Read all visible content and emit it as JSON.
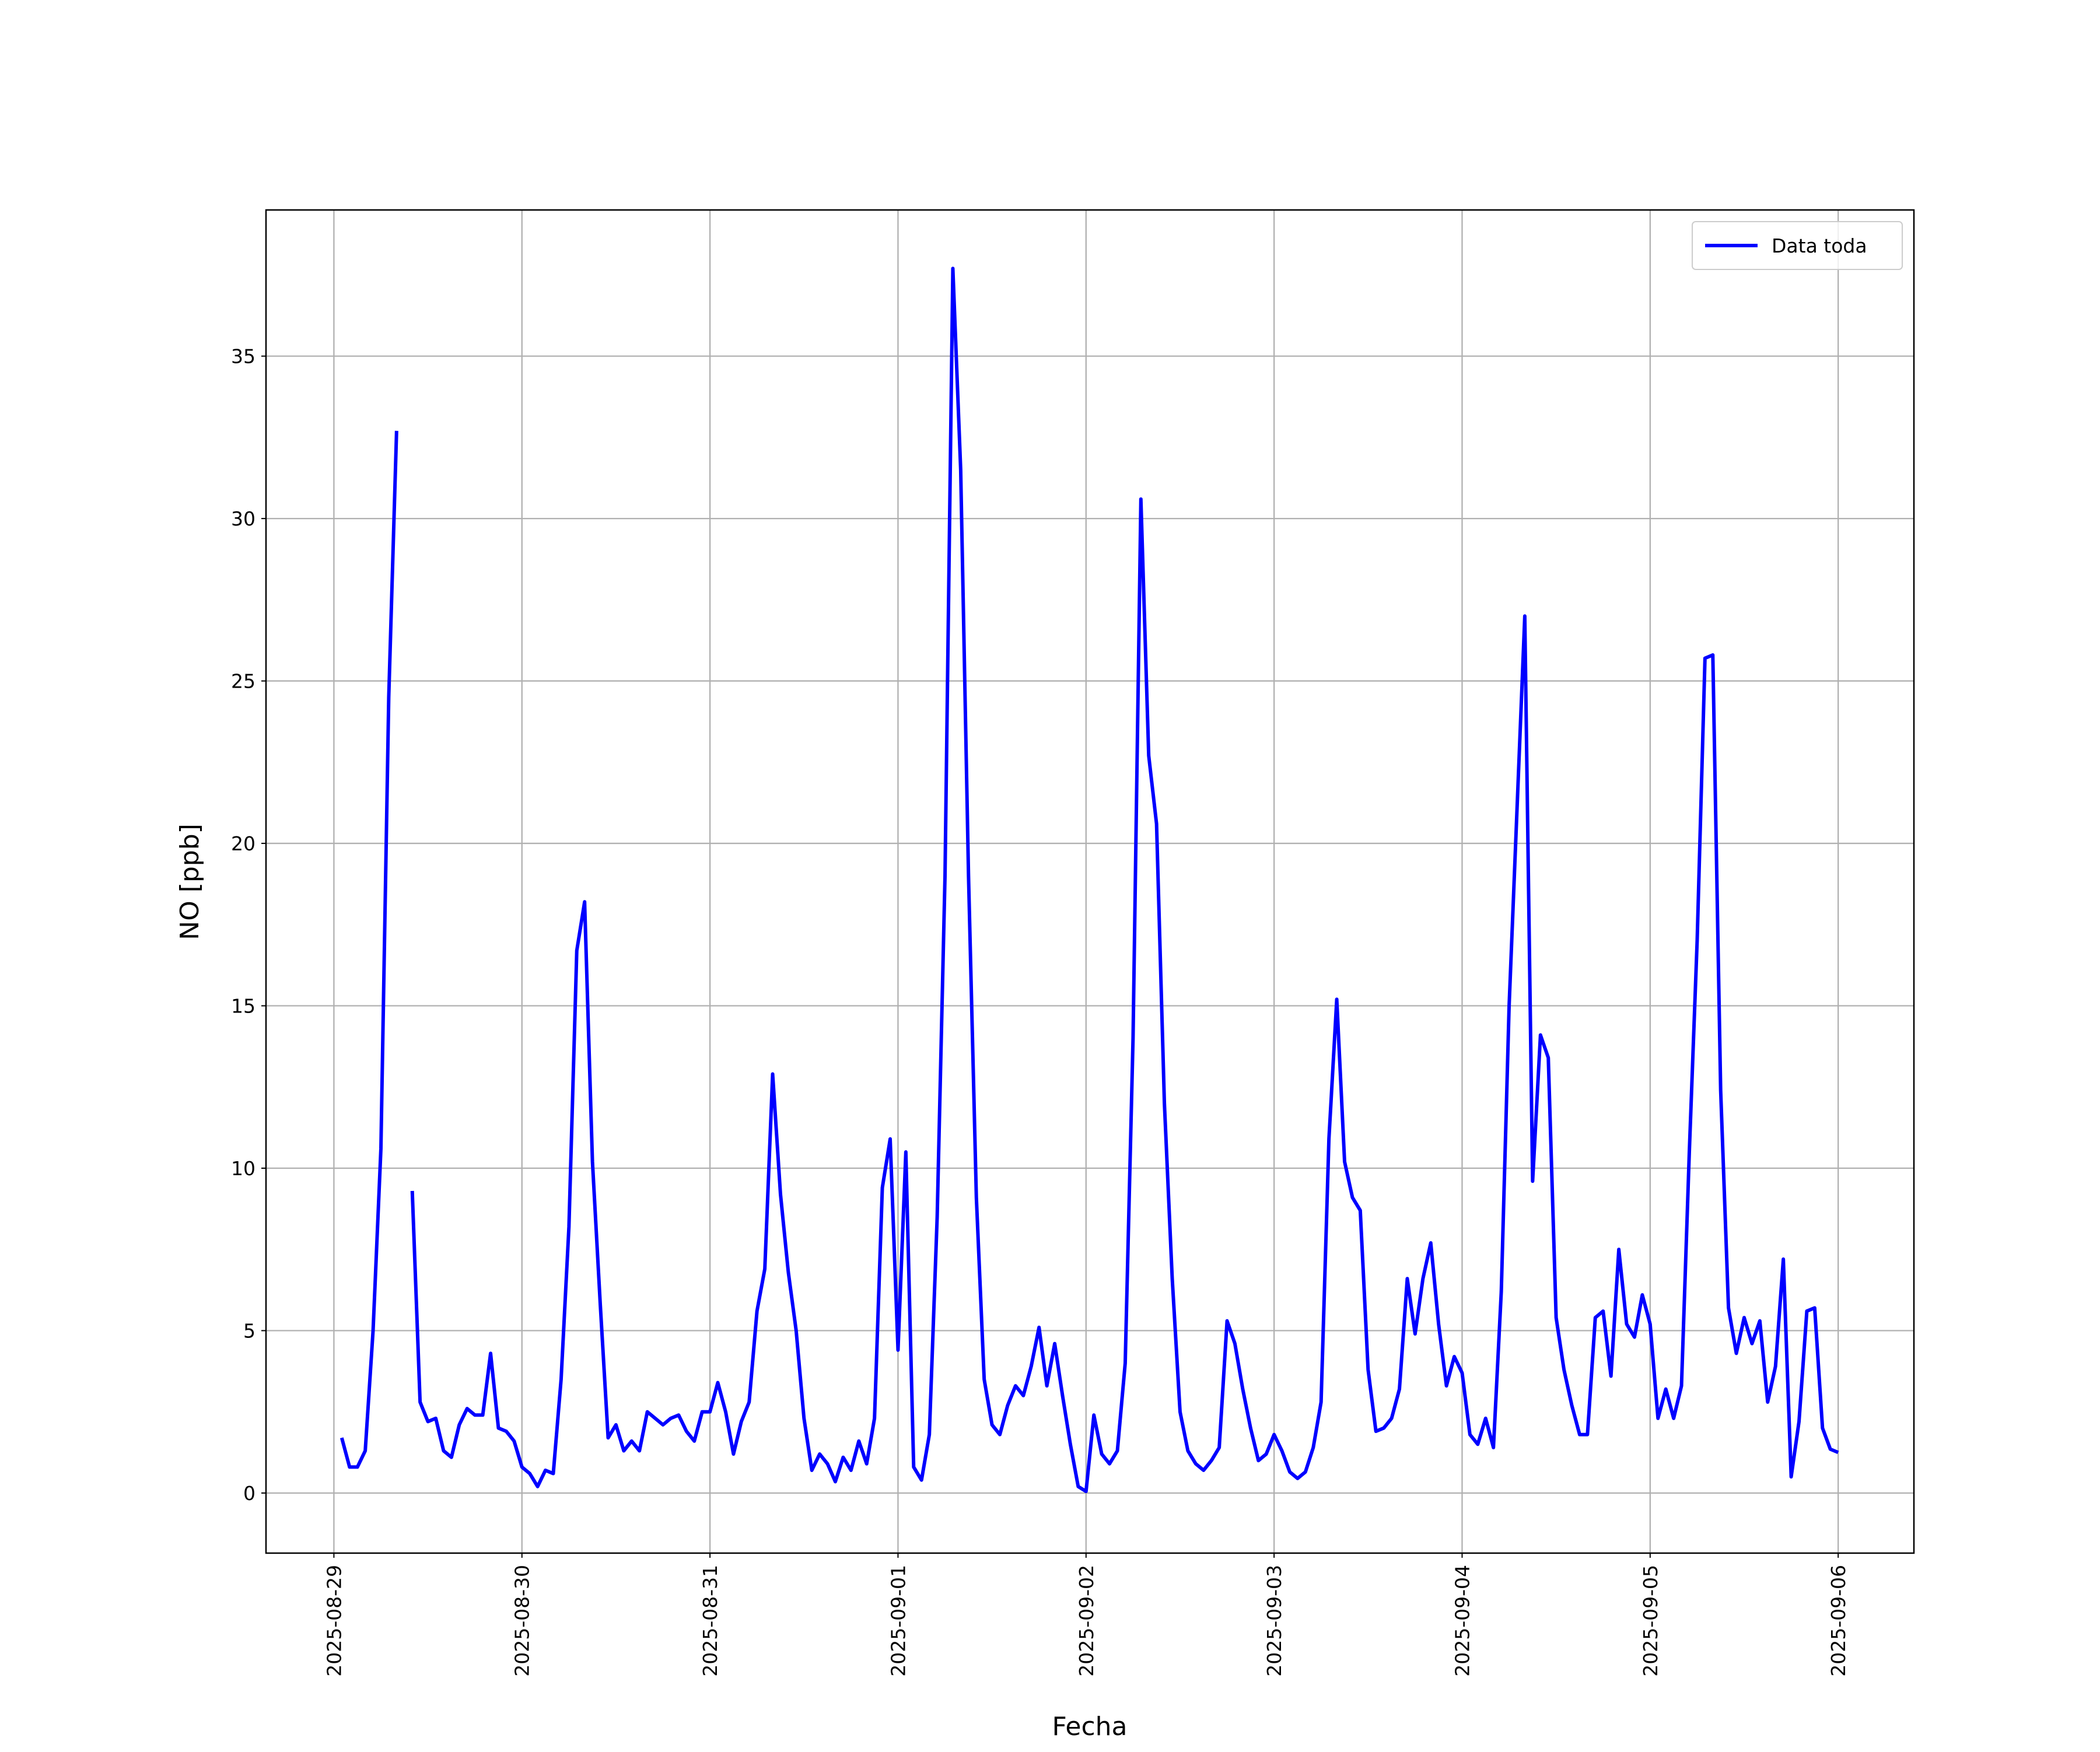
{
  "chart_data": {
    "type": "line",
    "x_label": "Fecha",
    "y_label": "NO [ppb]",
    "x": [
      "2025-08-29 01:00",
      "2025-08-29 02:00",
      "2025-08-29 03:00",
      "2025-08-29 04:00",
      "2025-08-29 05:00",
      "2025-08-29 06:00",
      "2025-08-29 07:00",
      "2025-08-29 08:00",
      "2025-08-29 09:00",
      "2025-08-29 10:00",
      "2025-08-29 11:00",
      "2025-08-29 12:00",
      "2025-08-29 13:00",
      "2025-08-29 14:00",
      "2025-08-29 15:00",
      "2025-08-29 16:00",
      "2025-08-29 17:00",
      "2025-08-29 18:00",
      "2025-08-29 19:00",
      "2025-08-29 20:00",
      "2025-08-29 21:00",
      "2025-08-29 22:00",
      "2025-08-29 23:00",
      "2025-08-30 00:00",
      "2025-08-30 01:00",
      "2025-08-30 02:00",
      "2025-08-30 03:00",
      "2025-08-30 04:00",
      "2025-08-30 05:00",
      "2025-08-30 06:00",
      "2025-08-30 07:00",
      "2025-08-30 08:00",
      "2025-08-30 09:00",
      "2025-08-30 10:00",
      "2025-08-30 11:00",
      "2025-08-30 12:00",
      "2025-08-30 13:00",
      "2025-08-30 14:00",
      "2025-08-30 15:00",
      "2025-08-30 16:00",
      "2025-08-30 17:00",
      "2025-08-30 18:00",
      "2025-08-30 19:00",
      "2025-08-30 20:00",
      "2025-08-30 21:00",
      "2025-08-30 22:00",
      "2025-08-30 23:00",
      "2025-08-31 00:00",
      "2025-08-31 01:00",
      "2025-08-31 02:00",
      "2025-08-31 03:00",
      "2025-08-31 04:00",
      "2025-08-31 05:00",
      "2025-08-31 06:00",
      "2025-08-31 07:00",
      "2025-08-31 08:00",
      "2025-08-31 09:00",
      "2025-08-31 10:00",
      "2025-08-31 11:00",
      "2025-08-31 12:00",
      "2025-08-31 13:00",
      "2025-08-31 14:00",
      "2025-08-31 15:00",
      "2025-08-31 16:00",
      "2025-08-31 17:00",
      "2025-08-31 18:00",
      "2025-08-31 19:00",
      "2025-08-31 20:00",
      "2025-08-31 21:00",
      "2025-08-31 22:00",
      "2025-08-31 23:00",
      "2025-09-01 00:00",
      "2025-09-01 01:00",
      "2025-09-01 02:00",
      "2025-09-01 03:00",
      "2025-09-01 04:00",
      "2025-09-01 05:00",
      "2025-09-01 06:00",
      "2025-09-01 07:00",
      "2025-09-01 08:00",
      "2025-09-01 09:00",
      "2025-09-01 10:00",
      "2025-09-01 11:00",
      "2025-09-01 12:00",
      "2025-09-01 13:00",
      "2025-09-01 14:00",
      "2025-09-01 15:00",
      "2025-09-01 16:00",
      "2025-09-01 17:00",
      "2025-09-01 18:00",
      "2025-09-01 19:00",
      "2025-09-01 20:00",
      "2025-09-01 21:00",
      "2025-09-01 22:00",
      "2025-09-01 23:00",
      "2025-09-02 00:00",
      "2025-09-02 01:00",
      "2025-09-02 02:00",
      "2025-09-02 03:00",
      "2025-09-02 04:00",
      "2025-09-02 05:00",
      "2025-09-02 06:00",
      "2025-09-02 07:00",
      "2025-09-02 08:00",
      "2025-09-02 09:00",
      "2025-09-02 10:00",
      "2025-09-02 11:00",
      "2025-09-02 12:00",
      "2025-09-02 13:00",
      "2025-09-02 14:00",
      "2025-09-02 15:00",
      "2025-09-02 16:00",
      "2025-09-02 17:00",
      "2025-09-02 18:00",
      "2025-09-02 19:00",
      "2025-09-02 20:00",
      "2025-09-02 21:00",
      "2025-09-02 22:00",
      "2025-09-02 23:00",
      "2025-09-03 00:00",
      "2025-09-03 01:00",
      "2025-09-03 02:00",
      "2025-09-03 03:00",
      "2025-09-03 04:00",
      "2025-09-03 05:00",
      "2025-09-03 06:00",
      "2025-09-03 07:00",
      "2025-09-03 08:00",
      "2025-09-03 09:00",
      "2025-09-03 10:00",
      "2025-09-03 11:00",
      "2025-09-03 12:00",
      "2025-09-03 13:00",
      "2025-09-03 14:00",
      "2025-09-03 15:00",
      "2025-09-03 16:00",
      "2025-09-03 17:00",
      "2025-09-03 18:00",
      "2025-09-03 19:00",
      "2025-09-03 20:00",
      "2025-09-03 21:00",
      "2025-09-03 22:00",
      "2025-09-03 23:00",
      "2025-09-04 00:00",
      "2025-09-04 01:00",
      "2025-09-04 02:00",
      "2025-09-04 03:00",
      "2025-09-04 04:00",
      "2025-09-04 05:00",
      "2025-09-04 06:00",
      "2025-09-04 07:00",
      "2025-09-04 08:00",
      "2025-09-04 09:00",
      "2025-09-04 10:00",
      "2025-09-04 11:00",
      "2025-09-04 12:00",
      "2025-09-04 13:00",
      "2025-09-04 14:00",
      "2025-09-04 15:00",
      "2025-09-04 16:00",
      "2025-09-04 17:00",
      "2025-09-04 18:00",
      "2025-09-04 19:00",
      "2025-09-04 20:00",
      "2025-09-04 21:00",
      "2025-09-04 22:00",
      "2025-09-04 23:00",
      "2025-09-05 00:00",
      "2025-09-05 01:00",
      "2025-09-05 02:00",
      "2025-09-05 03:00",
      "2025-09-05 04:00",
      "2025-09-05 05:00",
      "2025-09-05 06:00",
      "2025-09-05 07:00",
      "2025-09-05 08:00",
      "2025-09-05 09:00",
      "2025-09-05 10:00",
      "2025-09-05 11:00",
      "2025-09-05 12:00",
      "2025-09-05 13:00",
      "2025-09-05 14:00",
      "2025-09-05 15:00",
      "2025-09-05 16:00",
      "2025-09-05 17:00",
      "2025-09-05 18:00",
      "2025-09-05 19:00",
      "2025-09-05 20:00",
      "2025-09-05 21:00",
      "2025-09-05 22:00",
      "2025-09-05 23:00",
      "2025-09-06 00:00"
    ],
    "series": [
      {
        "name": "Data toda",
        "color": "#0000ff",
        "values": [
          1.7,
          0.8,
          0.8,
          1.3,
          5,
          10.6,
          24.5,
          32.7,
          null,
          9.3,
          2.8,
          2.2,
          2.3,
          1.3,
          1.1,
          2.1,
          2.6,
          2.4,
          2.4,
          4.3,
          2.0,
          1.9,
          1.6,
          0.8,
          0.6,
          0.2,
          0.7,
          0.6,
          3.5,
          8.2,
          16.7,
          18.2,
          10.2,
          5.8,
          1.7,
          2.1,
          1.3,
          1.6,
          1.3,
          2.5,
          2.3,
          2.1,
          2.3,
          2.4,
          1.9,
          1.6,
          2.5,
          2.5,
          3.4,
          2.5,
          1.2,
          2.2,
          2.8,
          5.6,
          6.9,
          12.9,
          9.2,
          6.8,
          5.0,
          2.3,
          0.7,
          1.2,
          0.9,
          0.35,
          1.1,
          0.7,
          1.6,
          0.9,
          2.3,
          9.4,
          10.9,
          4.4,
          10.5,
          0.8,
          0.4,
          1.8,
          8.5,
          19.0,
          37.7,
          31.5,
          19.0,
          9.1,
          3.5,
          2.1,
          1.8,
          2.7,
          3.3,
          3.0,
          3.9,
          5.1,
          3.3,
          4.6,
          3.0,
          1.5,
          0.2,
          0.05,
          2.4,
          1.2,
          0.9,
          1.3,
          4.0,
          14.0,
          30.6,
          22.7,
          20.6,
          12.0,
          6.6,
          2.5,
          1.3,
          0.9,
          0.7,
          1.0,
          1.4,
          5.3,
          4.6,
          3.2,
          2.0,
          1.0,
          1.2,
          1.8,
          1.3,
          0.65,
          0.45,
          0.65,
          1.4,
          2.8,
          10.9,
          15.2,
          10.2,
          9.1,
          8.7,
          3.8,
          1.9,
          2.0,
          2.3,
          3.2,
          6.6,
          4.9,
          6.6,
          7.7,
          5.2,
          3.3,
          4.2,
          3.7,
          1.8,
          1.5,
          2.3,
          1.4,
          6.2,
          15.0,
          21.0,
          27.0,
          9.6,
          14.1,
          13.4,
          5.4,
          3.8,
          2.7,
          1.8,
          1.8,
          5.4,
          5.6,
          3.6,
          7.5,
          5.2,
          4.8,
          6.1,
          5.2,
          2.3,
          3.2,
          2.3,
          3.3,
          10.5,
          17.0,
          25.7,
          25.8,
          12.4,
          5.7,
          4.3,
          5.4,
          4.6,
          5.3,
          2.8,
          3.9,
          7.2,
          0.5,
          2.2,
          5.6,
          5.7,
          2.0,
          1.35,
          1.25
        ]
      }
    ],
    "xlim": [
      "2025-08-28 15:20",
      "2025-09-06 09:40"
    ],
    "xticks": [
      "2025-08-29",
      "2025-08-30",
      "2025-08-31",
      "2025-09-01",
      "2025-09-02",
      "2025-09-03",
      "2025-09-04",
      "2025-09-05",
      "2025-09-06"
    ],
    "ylim": [
      -1.85,
      39.5
    ],
    "yticks": [
      0,
      5,
      10,
      15,
      20,
      25,
      30,
      35
    ],
    "grid": true,
    "legend": "upper right"
  }
}
